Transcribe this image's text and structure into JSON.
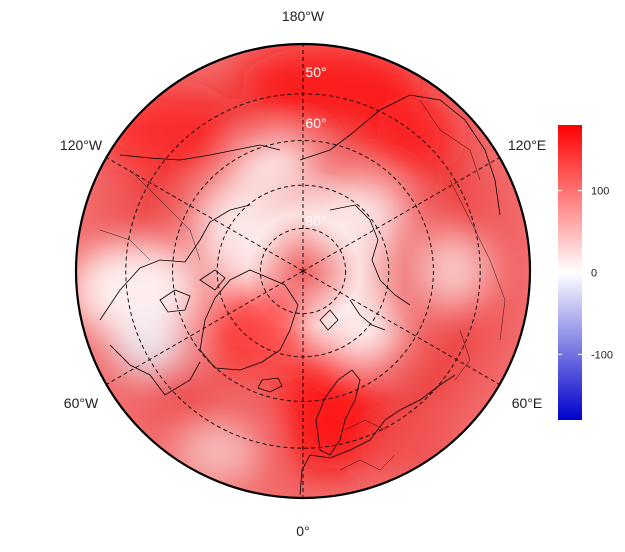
{
  "map": {
    "projection": "north-polar-stereographic",
    "meridian_labels": [
      {
        "key": "180W",
        "text": "180°W"
      },
      {
        "key": "120W",
        "text": "120°W"
      },
      {
        "key": "120E",
        "text": "120°E"
      },
      {
        "key": "60W",
        "text": "60°W"
      },
      {
        "key": "60E",
        "text": "60°E"
      },
      {
        "key": "0",
        "text": "0°"
      }
    ],
    "parallel_labels": [
      {
        "key": "50",
        "text": "50°"
      },
      {
        "key": "60",
        "text": "60°"
      },
      {
        "key": "80",
        "text": "80°"
      }
    ],
    "parallels_deg": [
      50,
      60,
      70,
      80
    ],
    "meridians_deg": [
      0,
      60,
      120,
      180,
      240,
      300
    ],
    "boundary_latitude_deg": 40,
    "features": [
      "coastlines",
      "country-borders"
    ],
    "colors": {
      "high": "#ff0000",
      "mid": "#ffffff",
      "low": "#0000cc",
      "outline": "#000000"
    }
  },
  "chart_data": {
    "type": "heatmap",
    "colorbar": {
      "ticks": [
        {
          "value": 100,
          "label": "100"
        },
        {
          "value": 0,
          "label": "0"
        },
        {
          "value": -100,
          "label": "-100"
        }
      ],
      "range": [
        -180,
        180
      ]
    }
  }
}
